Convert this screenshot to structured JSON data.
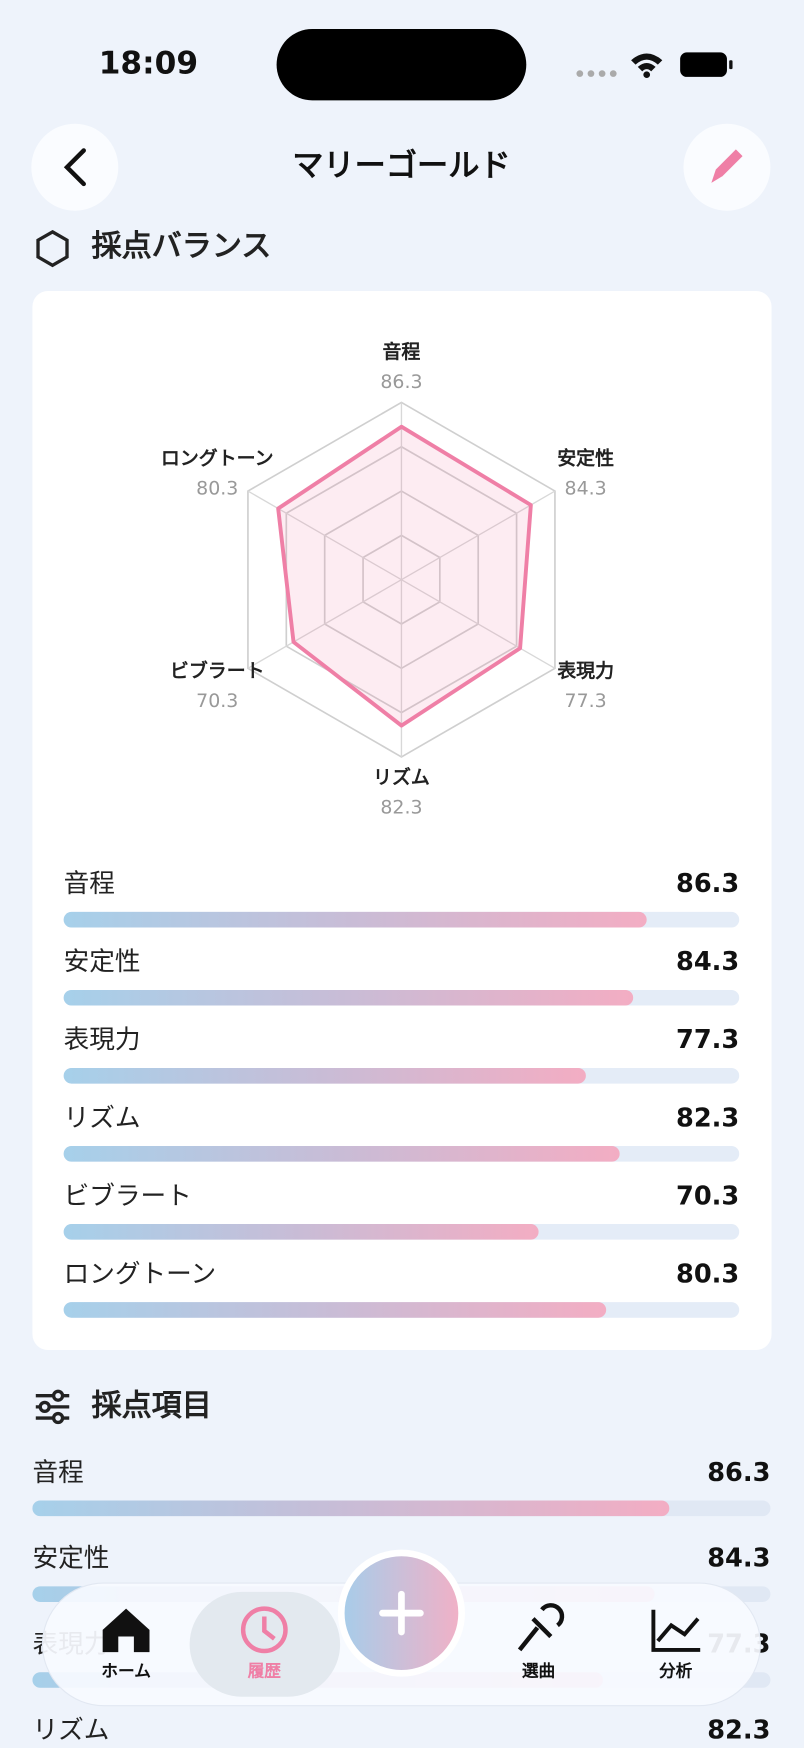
{
  "status_bar": {
    "time": "18:09"
  },
  "header": {
    "title": "マリーゴールド"
  },
  "sections": {
    "balance": "採点バランス",
    "items": "採点項目"
  },
  "chart_data": {
    "type": "radar",
    "categories": [
      "音程",
      "安定性",
      "表現力",
      "リズム",
      "ビブラート",
      "ロングトーン"
    ],
    "values": [
      86.3,
      84.3,
      77.3,
      82.3,
      70.3,
      80.3
    ],
    "color": "#ef7fa6",
    "rlim": [
      0,
      100
    ],
    "rticks": [
      25,
      50,
      75,
      100
    ],
    "grid": true
  },
  "nav": {
    "items": [
      "ホーム",
      "履歴",
      "選曲",
      "分析"
    ],
    "active": 1
  }
}
